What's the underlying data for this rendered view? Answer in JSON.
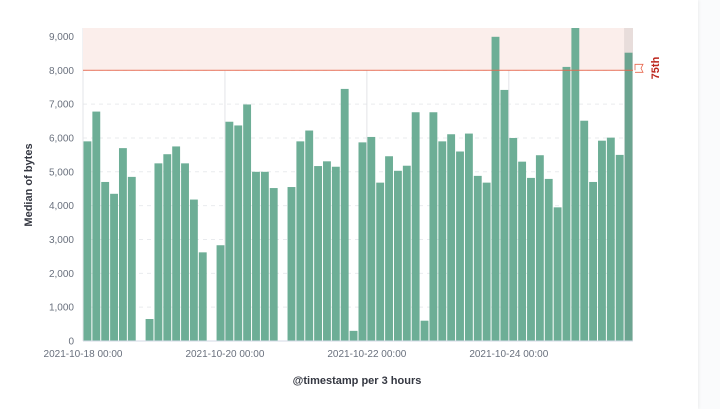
{
  "chart_data": {
    "type": "bar",
    "xlabel": "@timestamp per 3 hours",
    "ylabel": "Median of bytes",
    "ylim": [
      0,
      9250
    ],
    "grid": true,
    "yticks": [
      0,
      1000,
      2000,
      3000,
      4000,
      5000,
      6000,
      7000,
      8000,
      9000
    ],
    "ytick_labels": [
      "0",
      "1,000",
      "2,000",
      "3,000",
      "4,000",
      "5,000",
      "6,000",
      "7,000",
      "8,000",
      "9,000"
    ],
    "x_start": "2021-10-18 00:00",
    "bucket_hours": 3,
    "xtick_labels": [
      {
        "bucket": 0,
        "label": "2021-10-18 00:00"
      },
      {
        "bucket": 16,
        "label": "2021-10-20 00:00"
      },
      {
        "bucket": 32,
        "label": "2021-10-22 00:00"
      },
      {
        "bucket": 48,
        "label": "2021-10-24 00:00"
      }
    ],
    "values": [
      5900,
      6780,
      4700,
      4350,
      5700,
      4850,
      null,
      650,
      5250,
      5520,
      5750,
      5250,
      4180,
      2620,
      null,
      2830,
      6480,
      6370,
      6990,
      5000,
      5000,
      4520,
      null,
      4550,
      5900,
      6220,
      5170,
      5310,
      5150,
      7450,
      300,
      5870,
      6030,
      4680,
      5460,
      5030,
      5180,
      6760,
      600,
      6760,
      5900,
      6110,
      5600,
      6130,
      4880,
      4680,
      8990,
      7420,
      6000,
      5300,
      4820,
      5490,
      4790,
      3950,
      8100,
      9400,
      6510,
      4700,
      5920,
      6010,
      5500,
      8520
    ],
    "bar_color": "#6dae96",
    "threshold": {
      "value": 8000,
      "label": "75th",
      "color": "#e7664c",
      "band_color": "#fbeeeb"
    },
    "partial_last_bucket": true
  }
}
